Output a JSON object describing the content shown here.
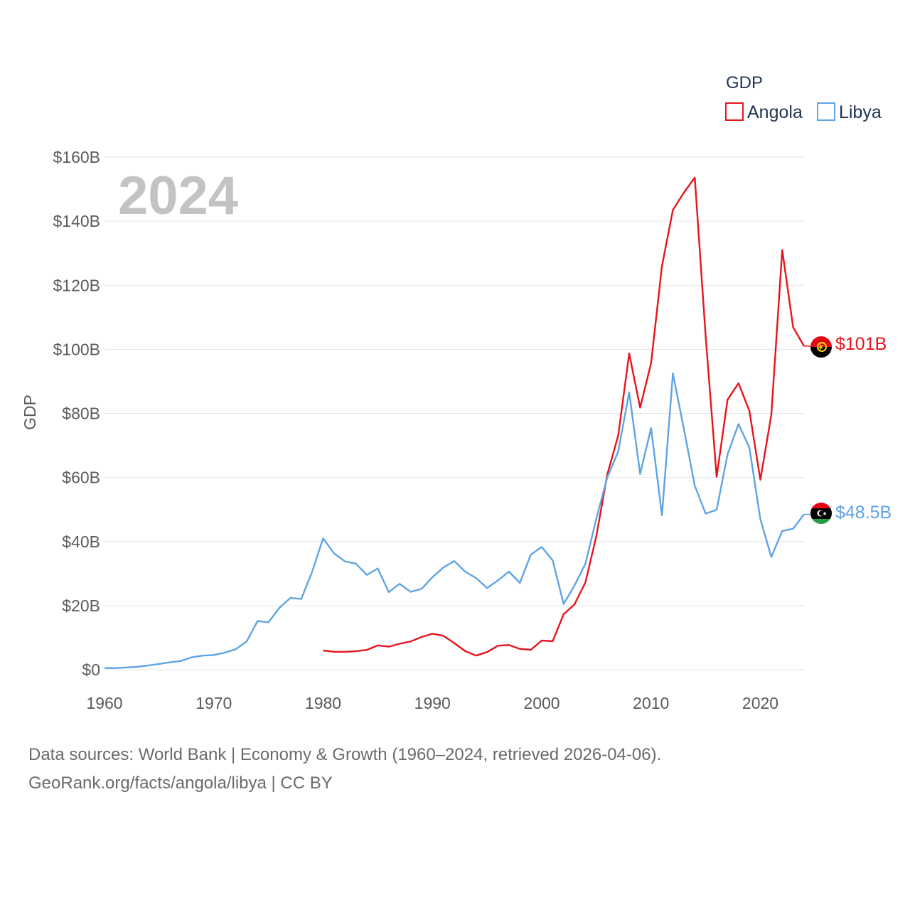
{
  "chart_data": {
    "type": "line",
    "title": "",
    "year_watermark": "2024",
    "ylabel": "GDP",
    "xlabel": "",
    "xlim": [
      1960,
      2024
    ],
    "ylim": [
      0,
      160
    ],
    "x_ticks": [
      1960,
      1970,
      1980,
      1990,
      2000,
      2010,
      2020
    ],
    "y_ticks": [
      0,
      20,
      40,
      60,
      80,
      100,
      120,
      140,
      160
    ],
    "y_tick_labels": [
      "$0",
      "$20B",
      "$40B",
      "$60B",
      "$80B",
      "$100B",
      "$120B",
      "$140B",
      "$160B"
    ],
    "grid": true,
    "legend": {
      "title": "GDP",
      "position": "top-right"
    },
    "x": [
      1960,
      1961,
      1962,
      1963,
      1964,
      1965,
      1966,
      1967,
      1968,
      1969,
      1970,
      1971,
      1972,
      1973,
      1974,
      1975,
      1976,
      1977,
      1978,
      1979,
      1980,
      1981,
      1982,
      1983,
      1984,
      1985,
      1986,
      1987,
      1988,
      1989,
      1990,
      1991,
      1992,
      1993,
      1994,
      1995,
      1996,
      1997,
      1998,
      1999,
      2000,
      2001,
      2002,
      2003,
      2004,
      2005,
      2006,
      2007,
      2008,
      2009,
      2010,
      2011,
      2012,
      2013,
      2014,
      2015,
      2016,
      2017,
      2018,
      2019,
      2020,
      2021,
      2022,
      2023,
      2024
    ],
    "series": [
      {
        "name": "Angola",
        "color": "#e8141b",
        "end_label": "$101B",
        "flag": "angola-flag",
        "values": [
          null,
          null,
          null,
          null,
          null,
          null,
          null,
          null,
          null,
          null,
          null,
          null,
          null,
          null,
          null,
          null,
          null,
          null,
          null,
          null,
          6.0,
          5.6,
          5.6,
          5.8,
          6.2,
          7.6,
          7.2,
          8.1,
          8.8,
          10.2,
          11.2,
          10.6,
          8.3,
          5.8,
          4.4,
          5.5,
          7.5,
          7.7,
          6.5,
          6.2,
          9.1,
          8.9,
          17.3,
          20.4,
          27.3,
          41.8,
          61.0,
          73.1,
          98.7,
          81.8,
          95.7,
          126.0,
          143.5,
          148.9,
          153.6,
          104.0,
          60.2,
          84.3,
          89.4,
          80.8,
          59.3,
          79.5,
          131.0,
          106.9,
          101.0
        ]
      },
      {
        "name": "Libya",
        "color": "#5ea4e4",
        "end_label": "$48.5B",
        "flag": "libya-flag",
        "values": [
          0.5,
          0.5,
          0.7,
          0.9,
          1.3,
          1.8,
          2.3,
          2.7,
          3.9,
          4.4,
          4.6,
          5.3,
          6.4,
          8.8,
          15.2,
          14.8,
          19.3,
          22.4,
          22.1,
          30.6,
          41.0,
          36.3,
          33.8,
          33.1,
          29.6,
          31.6,
          24.2,
          26.8,
          24.3,
          25.2,
          28.9,
          31.9,
          33.9,
          30.6,
          28.6,
          25.5,
          27.9,
          30.6,
          27.1,
          35.9,
          38.3,
          34.1,
          20.5,
          26.3,
          33.1,
          47.3,
          60.1,
          68.1,
          86.6,
          61.1,
          75.4,
          48.2,
          92.5,
          75.2,
          57.4,
          48.7,
          49.9,
          67.2,
          76.7,
          69.3,
          47.0,
          35.2,
          43.3,
          44.0,
          48.5
        ]
      }
    ]
  },
  "footer": {
    "sources_line": "Data sources: World Bank | Economy & Growth (1960–2024, retrieved 2026-04-06).",
    "credit_line": "GeoRank.org/facts/angola/libya | CC BY"
  }
}
